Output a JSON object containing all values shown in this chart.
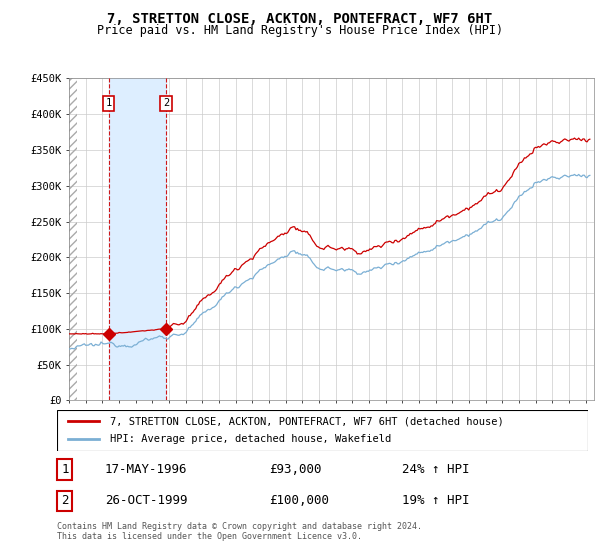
{
  "title": "7, STRETTON CLOSE, ACKTON, PONTEFRACT, WF7 6HT",
  "subtitle": "Price paid vs. HM Land Registry's House Price Index (HPI)",
  "sale1_label": "17-MAY-1996",
  "sale1_price": 93000,
  "sale1_year": 1996.375,
  "sale1_hpi_pct": "24% ↑ HPI",
  "sale2_label": "26-OCT-1999",
  "sale2_price": 100000,
  "sale2_year": 1999.815,
  "sale2_hpi_pct": "19% ↑ HPI",
  "hpi_color": "#7bafd4",
  "price_color": "#cc0000",
  "shaded_region_color": "#ddeeff",
  "grid_color": "#cccccc",
  "legend_label_price": "7, STRETTON CLOSE, ACKTON, PONTEFRACT, WF7 6HT (detached house)",
  "legend_label_hpi": "HPI: Average price, detached house, Wakefield",
  "footer": "Contains HM Land Registry data © Crown copyright and database right 2024.\nThis data is licensed under the Open Government Licence v3.0.",
  "ylim": [
    0,
    450000
  ],
  "yticks": [
    0,
    50000,
    100000,
    150000,
    200000,
    250000,
    300000,
    350000,
    400000,
    450000
  ],
  "x_start_year": 1994,
  "x_end_year": 2025
}
